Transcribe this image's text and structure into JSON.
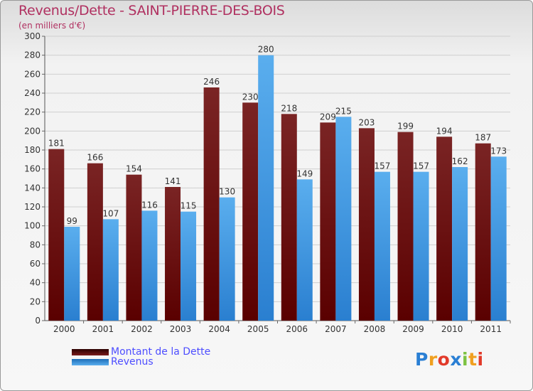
{
  "chart_data": {
    "type": "bar",
    "title": "Revenus/Dette - SAINT-PIERRE-DES-BOIS",
    "subtitle": "(en milliers d'€)",
    "categories": [
      "2000",
      "2001",
      "2002",
      "2003",
      "2004",
      "2005",
      "2006",
      "2007",
      "2008",
      "2009",
      "2010",
      "2011"
    ],
    "series": [
      {
        "name": "Montant de la Dette",
        "color": "#7a1c1c",
        "values": [
          181,
          166,
          154,
          141,
          246,
          230,
          218,
          209,
          203,
          199,
          194,
          187
        ]
      },
      {
        "name": "Revenus",
        "color": "#4a9fe0",
        "values": [
          99,
          107,
          116,
          115,
          130,
          280,
          149,
          215,
          157,
          157,
          162,
          173
        ]
      }
    ],
    "ylim": [
      0,
      300
    ],
    "yticks": [
      0,
      20,
      40,
      60,
      80,
      100,
      120,
      140,
      160,
      180,
      200,
      220,
      240,
      260,
      280,
      300
    ],
    "grid": true,
    "legend_position": "bottom-left"
  },
  "logo": {
    "letters": [
      "P",
      "r",
      "o",
      "x",
      "i",
      "t",
      "i"
    ],
    "colors": [
      "#2a7fd4",
      "#f0a020",
      "#e23a2a",
      "#2a7fd4",
      "#7cc242",
      "#f0a020",
      "#e23a2a"
    ]
  }
}
